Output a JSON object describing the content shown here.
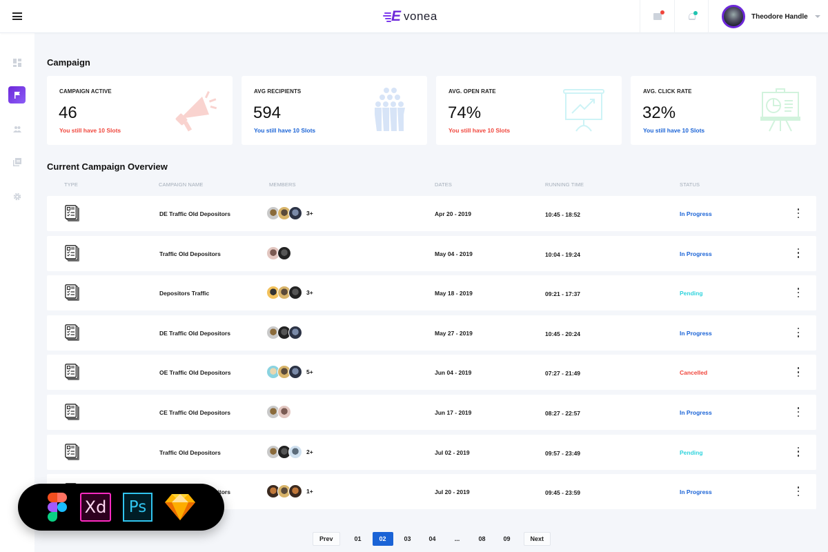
{
  "topbar": {
    "logo_mark": "E",
    "logo_word": "vonea",
    "brand_color": "#6d28d9",
    "mail_icon": "mail-icon",
    "mail_badge_color": "#f0463c",
    "bell_icon": "bell-icon",
    "bell_badge_color": "#1fc4b0",
    "user_name": "Theodore Handle"
  },
  "sidebar": {
    "items": [
      {
        "icon": "dashboard-icon",
        "active": false
      },
      {
        "icon": "flag-icon",
        "active": true
      },
      {
        "icon": "users-icon",
        "active": false
      },
      {
        "icon": "library-icon",
        "active": false
      },
      {
        "icon": "gear-icon",
        "active": false
      }
    ]
  },
  "campaign": {
    "title": "Campaign",
    "cards": [
      {
        "label": "CAMPAIGN ACTIVE",
        "value": "46",
        "sub": "You still have 10 Slots",
        "sub_color": "#f0463c",
        "icon": "megaphone-icon"
      },
      {
        "label": "AVG RECIPIENTS",
        "value": "594",
        "sub": "You still have 10 Slots",
        "sub_color": "#1a63d6",
        "icon": "crowd-icon"
      },
      {
        "label": "AVG. OPEN RATE",
        "value": "74%",
        "sub": "You still have 10 Slots",
        "sub_color": "#f0463c",
        "icon": "presentation-chart-icon"
      },
      {
        "label": "AVG. CLICK RATE",
        "value": "32%",
        "sub": "You still have 10 Slots",
        "sub_color": "#1a63d6",
        "icon": "presentation-pie-icon"
      }
    ]
  },
  "overview": {
    "title": "Current Campaign Overview",
    "columns": [
      "TYPE",
      "CAMPAIGN NAME",
      "MEMBERS",
      "DATES",
      "RUNNING TIME",
      "STATUS"
    ],
    "rows": [
      {
        "name": "DE Traffic Old Depositors",
        "members_count": 3,
        "members_more": "3+",
        "date": "Apr 20 - 2019",
        "time": "10:45 - 18:52",
        "status": "In Progress"
      },
      {
        "name": "Traffic Old Depositors",
        "members_count": 2,
        "members_more": "",
        "date": "May 04 - 2019",
        "time": "10:04 - 19:24",
        "status": "In Progress"
      },
      {
        "name": "Depositors Traffic",
        "members_count": 3,
        "members_more": "3+",
        "date": "May 18 - 2019",
        "time": "09:21 - 17:37",
        "status": "Pending"
      },
      {
        "name": "DE Traffic Old Depositors",
        "members_count": 3,
        "members_more": "",
        "date": "May 27 - 2019",
        "time": "10:45 - 20:24",
        "status": "In Progress"
      },
      {
        "name": "OE Traffic Old Depositors",
        "members_count": 3,
        "members_more": "5+",
        "date": "Jun 04 - 2019",
        "time": "07:27 - 21:49",
        "status": "Cancelled"
      },
      {
        "name": "CE Traffic Old Depositors",
        "members_count": 2,
        "members_more": "",
        "date": "Jun 17 - 2019",
        "time": "08:27 - 22:57",
        "status": "In Progress"
      },
      {
        "name": "Traffic Old Depositors",
        "members_count": 3,
        "members_more": "2+",
        "date": "Jul 02 - 2019",
        "time": "09:57 - 23:49",
        "status": "Pending"
      },
      {
        "name": "DE Traffic Old Depositors",
        "members_count": 3,
        "members_more": "1+",
        "date": "Jul 20 - 2019",
        "time": "09:45 - 23:59",
        "status": "In Progress"
      }
    ],
    "status_colors": {
      "In Progress": "#1a63d6",
      "Pending": "#2fd3dd",
      "Cancelled": "#f0463c"
    }
  },
  "pagination": {
    "prev": "Prev",
    "pages": [
      "01",
      "02",
      "03",
      "04",
      "...",
      "08",
      "09"
    ],
    "current": "02",
    "next": "Next"
  },
  "tool_badges": [
    "figma-icon",
    "adobe-xd-icon",
    "photoshop-icon",
    "sketch-icon"
  ],
  "tool_labels": {
    "xd": "Xd",
    "ps": "Ps"
  }
}
